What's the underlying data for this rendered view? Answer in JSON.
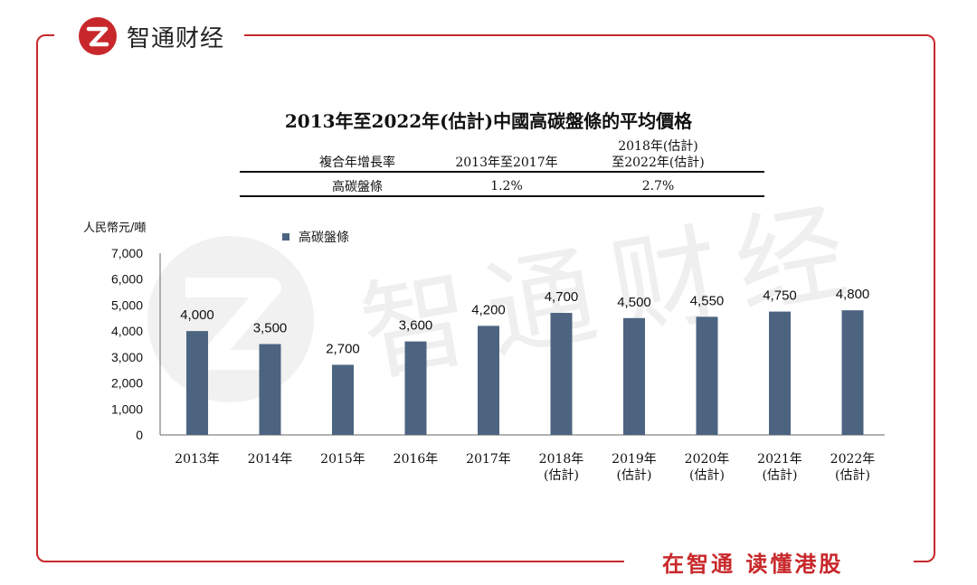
{
  "brand": {
    "name": "智通财经",
    "slogan": "在智通 读懂港股"
  },
  "colors": {
    "accent": "#c8282b",
    "bar": "#4c6480",
    "watermark": "#efefef"
  },
  "table": {
    "header_label": "複合年增長率",
    "col1_header": "2013年至2017年",
    "col2_header_line1": "2018年(估計)",
    "col2_header_line2": "至2022年(估計)",
    "row_label": "高碳盤條",
    "col1_value": "1.2%",
    "col2_value": "2.7%"
  },
  "chart_data": {
    "type": "bar",
    "title": "2013年至2022年(估計)中國高碳盤條的平均價格",
    "ylabel": "人民幣元/噸",
    "xlabel": "",
    "ylim": [
      0,
      7000
    ],
    "yticks": [
      "0",
      "1,000",
      "2,000",
      "3,000",
      "4,000",
      "5,000",
      "6,000",
      "7,000"
    ],
    "legend": "top-left",
    "series": [
      {
        "name": "高碳盤條",
        "values": [
          4000,
          3500,
          2700,
          3600,
          4200,
          4700,
          4500,
          4550,
          4750,
          4800
        ],
        "labels": [
          "4,000",
          "3,500",
          "2,700",
          "3,600",
          "4,200",
          "4,700",
          "4,500",
          "4,550",
          "4,750",
          "4,800"
        ]
      }
    ],
    "categories": [
      [
        "2013年"
      ],
      [
        "2014年"
      ],
      [
        "2015年"
      ],
      [
        "2016年"
      ],
      [
        "2017年"
      ],
      [
        "2018年",
        "(估計)"
      ],
      [
        "2019年",
        "(估計)"
      ],
      [
        "2020年",
        "(估計)"
      ],
      [
        "2021年",
        "(估計)"
      ],
      [
        "2022年",
        "(估計)"
      ]
    ]
  }
}
